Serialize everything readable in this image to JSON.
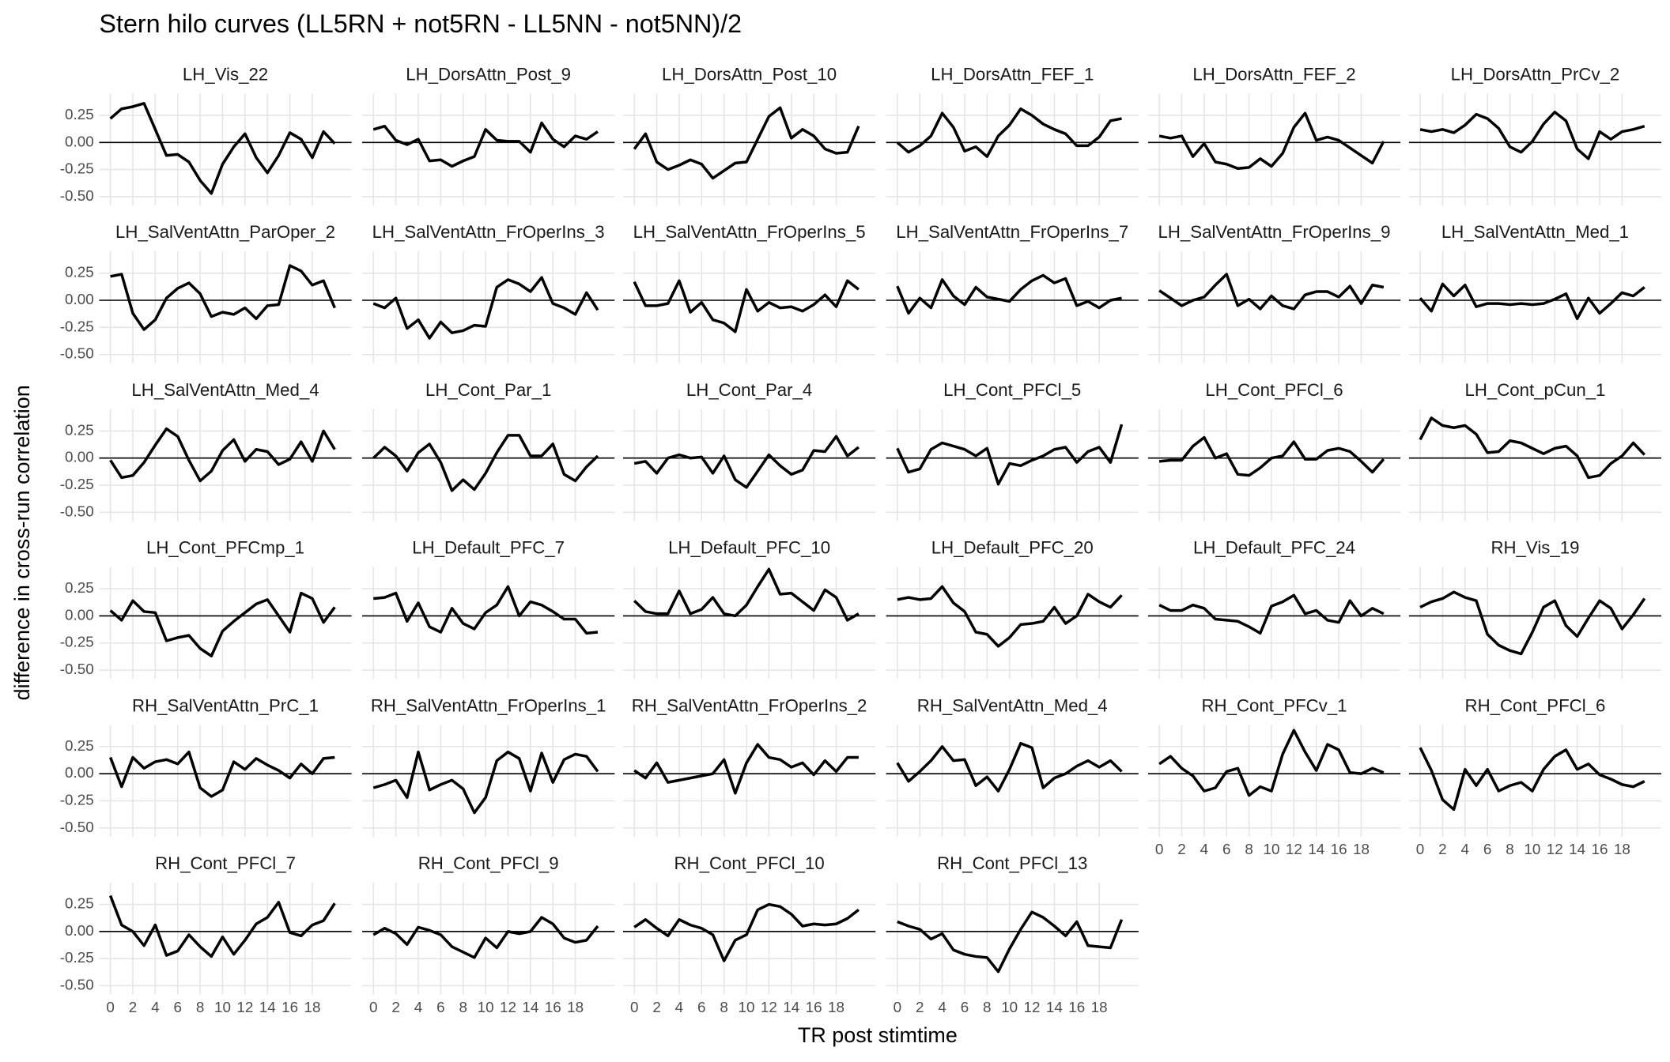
{
  "chart_data": {
    "type": "line",
    "title": "Stern hilo curves (LL5RN + not5RN - LL5NN - not5NN)/2",
    "x_label": "TR post stimtime",
    "y_label": "difference in cross-run correlation",
    "x": [
      0,
      1,
      2,
      3,
      4,
      5,
      6,
      7,
      8,
      9,
      10,
      11,
      12,
      13,
      14,
      15,
      16,
      17,
      18,
      19,
      20
    ],
    "xlim": [
      -1,
      21.5
    ],
    "ylim": [
      -0.58,
      0.45
    ],
    "xticks": [
      0,
      2,
      4,
      6,
      8,
      10,
      12,
      14,
      16,
      18
    ],
    "yticks": [
      {
        "value": -0.5,
        "label": "-0.50"
      },
      {
        "value": -0.25,
        "label": "-0.25"
      },
      {
        "value": 0,
        "label": "0.00"
      },
      {
        "value": 0.25,
        "label": "0.25"
      }
    ],
    "hline": 0,
    "grid": true,
    "color": "#000000",
    "panels": [
      {
        "title": "LH_Vis_22",
        "values": [
          0.22,
          0.31,
          0.33,
          0.36,
          0.12,
          -0.12,
          -0.11,
          -0.18,
          -0.35,
          -0.47,
          -0.2,
          -0.04,
          0.08,
          -0.14,
          -0.28,
          -0.12,
          0.09,
          0.03,
          -0.14,
          0.1,
          -0.01
        ]
      },
      {
        "title": "LH_DorsAttn_Post_9",
        "values": [
          0.12,
          0.15,
          0.02,
          -0.02,
          0.03,
          -0.17,
          -0.16,
          -0.22,
          -0.17,
          -0.13,
          0.12,
          0.02,
          0.01,
          0.01,
          -0.09,
          0.18,
          0.03,
          -0.04,
          0.06,
          0.03,
          0.1
        ]
      },
      {
        "title": "LH_DorsAttn_Post_10",
        "values": [
          -0.06,
          0.08,
          -0.18,
          -0.25,
          -0.21,
          -0.16,
          -0.2,
          -0.33,
          -0.26,
          -0.19,
          -0.18,
          0.03,
          0.24,
          0.32,
          0.04,
          0.12,
          0.06,
          -0.06,
          -0.1,
          -0.09,
          0.15
        ]
      },
      {
        "title": "LH_DorsAttn_FEF_1",
        "values": [
          0.0,
          -0.09,
          -0.03,
          0.06,
          0.27,
          0.14,
          -0.08,
          -0.04,
          -0.13,
          0.06,
          0.16,
          0.31,
          0.25,
          0.17,
          0.12,
          0.08,
          -0.03,
          -0.03,
          0.05,
          0.2,
          0.22
        ]
      },
      {
        "title": "LH_DorsAttn_FEF_2",
        "values": [
          0.06,
          0.04,
          0.06,
          -0.13,
          -0.01,
          -0.18,
          -0.2,
          -0.24,
          -0.23,
          -0.15,
          -0.22,
          -0.1,
          0.14,
          0.27,
          0.02,
          0.05,
          0.02,
          -0.05,
          -0.12,
          -0.19,
          0.01
        ]
      },
      {
        "title": "LH_DorsAttn_PrCv_2",
        "values": [
          0.12,
          0.1,
          0.12,
          0.09,
          0.16,
          0.26,
          0.22,
          0.13,
          -0.04,
          -0.09,
          0.01,
          0.17,
          0.28,
          0.2,
          -0.06,
          -0.15,
          0.1,
          0.03,
          0.1,
          0.12,
          0.15
        ]
      },
      {
        "title": "LH_SalVentAttn_ParOper_2",
        "values": [
          0.22,
          0.24,
          -0.12,
          -0.27,
          -0.18,
          0.02,
          0.11,
          0.16,
          0.06,
          -0.15,
          -0.11,
          -0.13,
          -0.07,
          -0.17,
          -0.05,
          -0.04,
          0.32,
          0.27,
          0.14,
          0.18,
          -0.07
        ]
      },
      {
        "title": "LH_SalVentAttn_FrOperIns_3",
        "values": [
          -0.03,
          -0.07,
          0.02,
          -0.26,
          -0.18,
          -0.35,
          -0.2,
          -0.3,
          -0.28,
          -0.23,
          -0.24,
          0.12,
          0.19,
          0.15,
          0.08,
          0.21,
          -0.03,
          -0.07,
          -0.13,
          0.07,
          -0.09
        ]
      },
      {
        "title": "LH_SalVentAttn_FrOperIns_5",
        "values": [
          0.17,
          -0.05,
          -0.05,
          -0.03,
          0.18,
          -0.11,
          -0.02,
          -0.18,
          -0.21,
          -0.29,
          0.1,
          -0.1,
          -0.02,
          -0.07,
          -0.06,
          -0.1,
          -0.04,
          0.05,
          -0.06,
          0.18,
          0.1
        ]
      },
      {
        "title": "LH_SalVentAttn_FrOperIns_7",
        "values": [
          0.13,
          -0.12,
          0.02,
          -0.07,
          0.19,
          0.04,
          -0.04,
          0.12,
          0.03,
          0.01,
          -0.01,
          0.1,
          0.18,
          0.23,
          0.16,
          0.2,
          -0.05,
          -0.01,
          -0.07,
          0.0,
          0.02
        ]
      },
      {
        "title": "LH_SalVentAttn_FrOperIns_9",
        "values": [
          0.09,
          0.02,
          -0.05,
          0.0,
          0.03,
          0.14,
          0.24,
          -0.05,
          0.01,
          -0.08,
          0.04,
          -0.05,
          -0.08,
          0.05,
          0.08,
          0.08,
          0.03,
          0.13,
          -0.03,
          0.14,
          0.12
        ]
      },
      {
        "title": "LH_SalVentAttn_Med_1",
        "values": [
          0.02,
          -0.1,
          0.15,
          0.04,
          0.14,
          -0.06,
          -0.03,
          -0.03,
          -0.04,
          -0.03,
          -0.04,
          -0.03,
          0.01,
          0.06,
          -0.17,
          0.02,
          -0.12,
          -0.03,
          0.07,
          0.04,
          0.12
        ]
      },
      {
        "title": "LH_SalVentAttn_Med_4",
        "values": [
          -0.02,
          -0.18,
          -0.16,
          -0.04,
          0.12,
          0.27,
          0.2,
          -0.02,
          -0.21,
          -0.12,
          0.07,
          0.17,
          -0.03,
          0.08,
          0.06,
          -0.06,
          -0.01,
          0.15,
          -0.03,
          0.25,
          0.08
        ]
      },
      {
        "title": "LH_Cont_Par_1",
        "values": [
          0.0,
          0.1,
          0.02,
          -0.12,
          0.05,
          0.13,
          -0.04,
          -0.3,
          -0.2,
          -0.29,
          -0.14,
          0.05,
          0.21,
          0.21,
          0.02,
          0.02,
          0.13,
          -0.15,
          -0.21,
          -0.08,
          0.02
        ]
      },
      {
        "title": "LH_Cont_Par_4",
        "values": [
          -0.05,
          -0.03,
          -0.14,
          0.0,
          0.03,
          0.0,
          0.01,
          -0.14,
          0.02,
          -0.2,
          -0.27,
          -0.12,
          0.03,
          -0.07,
          -0.15,
          -0.11,
          0.07,
          0.06,
          0.2,
          0.02,
          0.1
        ]
      },
      {
        "title": "LH_Cont_PFCl_5",
        "values": [
          0.09,
          -0.13,
          -0.1,
          0.08,
          0.14,
          0.11,
          0.08,
          0.02,
          0.09,
          -0.24,
          -0.05,
          -0.07,
          -0.02,
          0.02,
          0.08,
          0.1,
          -0.04,
          0.06,
          0.1,
          -0.04,
          0.31
        ]
      },
      {
        "title": "LH_Cont_PFCl_6",
        "values": [
          -0.03,
          -0.02,
          -0.02,
          0.11,
          0.19,
          0.0,
          0.04,
          -0.15,
          -0.16,
          -0.09,
          0.0,
          0.02,
          0.15,
          -0.01,
          -0.01,
          0.07,
          0.09,
          0.06,
          -0.03,
          -0.13,
          -0.01
        ]
      },
      {
        "title": "LH_Cont_pCun_1",
        "values": [
          0.17,
          0.37,
          0.3,
          0.28,
          0.3,
          0.22,
          0.05,
          0.06,
          0.16,
          0.14,
          0.09,
          0.04,
          0.09,
          0.11,
          0.02,
          -0.18,
          -0.16,
          -0.05,
          0.02,
          0.14,
          0.03
        ]
      },
      {
        "title": "LH_Cont_PFCmp_1",
        "values": [
          0.05,
          -0.04,
          0.14,
          0.04,
          0.03,
          -0.23,
          -0.2,
          -0.18,
          -0.3,
          -0.37,
          -0.14,
          -0.05,
          0.03,
          0.11,
          0.15,
          0.0,
          -0.15,
          0.21,
          0.16,
          -0.06,
          0.08
        ]
      },
      {
        "title": "LH_Default_PFC_7",
        "values": [
          0.16,
          0.17,
          0.21,
          -0.05,
          0.12,
          -0.1,
          -0.15,
          0.07,
          -0.07,
          -0.12,
          0.03,
          0.1,
          0.27,
          0.0,
          0.13,
          0.1,
          0.04,
          -0.03,
          -0.03,
          -0.16,
          -0.15
        ]
      },
      {
        "title": "LH_Default_PFC_10",
        "values": [
          0.14,
          0.04,
          0.02,
          0.02,
          0.23,
          0.02,
          0.06,
          0.17,
          0.02,
          0.0,
          0.1,
          0.27,
          0.43,
          0.2,
          0.21,
          0.13,
          0.05,
          0.24,
          0.17,
          -0.04,
          0.02
        ]
      },
      {
        "title": "LH_Default_PFC_20",
        "values": [
          0.15,
          0.17,
          0.15,
          0.16,
          0.27,
          0.12,
          0.04,
          -0.15,
          -0.17,
          -0.28,
          -0.2,
          -0.08,
          -0.07,
          -0.05,
          0.08,
          -0.07,
          0.0,
          0.2,
          0.13,
          0.08,
          0.19
        ]
      },
      {
        "title": "LH_Default_PFC_24",
        "values": [
          0.1,
          0.05,
          0.05,
          0.1,
          0.07,
          -0.03,
          -0.04,
          -0.05,
          -0.1,
          -0.16,
          0.09,
          0.13,
          0.19,
          0.02,
          0.05,
          -0.04,
          -0.06,
          0.14,
          0.0,
          0.07,
          0.02
        ]
      },
      {
        "title": "RH_Vis_19",
        "values": [
          0.08,
          0.13,
          0.16,
          0.22,
          0.17,
          0.14,
          -0.17,
          -0.27,
          -0.32,
          -0.35,
          -0.15,
          0.08,
          0.14,
          -0.09,
          -0.19,
          -0.02,
          0.14,
          0.07,
          -0.12,
          0.01,
          0.16
        ]
      },
      {
        "title": "RH_SalVentAttn_PrC_1",
        "values": [
          0.15,
          -0.12,
          0.15,
          0.05,
          0.11,
          0.13,
          0.09,
          0.2,
          -0.13,
          -0.21,
          -0.15,
          0.11,
          0.04,
          0.14,
          0.08,
          0.03,
          -0.04,
          0.09,
          0.0,
          0.14,
          0.15
        ]
      },
      {
        "title": "RH_SalVentAttn_FrOperIns_1",
        "values": [
          -0.13,
          -0.1,
          -0.06,
          -0.22,
          0.2,
          -0.15,
          -0.1,
          -0.06,
          -0.14,
          -0.36,
          -0.22,
          0.12,
          0.2,
          0.14,
          -0.16,
          0.19,
          -0.08,
          0.13,
          0.18,
          0.16,
          0.02
        ]
      },
      {
        "title": "RH_SalVentAttn_FrOperIns_2",
        "values": [
          0.03,
          -0.04,
          0.1,
          -0.08,
          -0.06,
          -0.04,
          -0.02,
          0.0,
          0.13,
          -0.18,
          0.1,
          0.27,
          0.15,
          0.13,
          0.06,
          0.1,
          -0.01,
          0.12,
          0.02,
          0.15,
          0.15
        ]
      },
      {
        "title": "RH_SalVentAttn_Med_4",
        "values": [
          0.1,
          -0.07,
          0.02,
          0.12,
          0.25,
          0.12,
          0.13,
          -0.11,
          -0.03,
          -0.16,
          0.04,
          0.28,
          0.24,
          -0.13,
          -0.04,
          0.0,
          0.07,
          0.12,
          0.06,
          0.12,
          0.02
        ]
      },
      {
        "title": "RH_Cont_PFCv_1",
        "values": [
          0.09,
          0.16,
          0.05,
          -0.02,
          -0.16,
          -0.13,
          0.02,
          0.05,
          -0.2,
          -0.12,
          -0.16,
          0.18,
          0.4,
          0.2,
          0.03,
          0.27,
          0.22,
          0.01,
          0.0,
          0.05,
          0.01
        ]
      },
      {
        "title": "RH_Cont_PFCl_6",
        "values": [
          0.24,
          0.03,
          -0.24,
          -0.33,
          0.04,
          -0.11,
          0.04,
          -0.16,
          -0.11,
          -0.08,
          -0.16,
          0.04,
          0.16,
          0.22,
          0.04,
          0.09,
          -0.01,
          -0.05,
          -0.1,
          -0.12,
          -0.07
        ]
      },
      {
        "title": "RH_Cont_PFCl_7",
        "values": [
          0.33,
          0.06,
          0.0,
          -0.13,
          0.06,
          -0.22,
          -0.18,
          -0.03,
          -0.14,
          -0.23,
          -0.05,
          -0.21,
          -0.08,
          0.07,
          0.13,
          0.27,
          -0.01,
          -0.04,
          0.06,
          0.1,
          0.26
        ]
      },
      {
        "title": "RH_Cont_PFCl_9",
        "values": [
          -0.03,
          0.03,
          -0.02,
          -0.12,
          0.04,
          0.01,
          -0.03,
          -0.14,
          -0.19,
          -0.24,
          -0.06,
          -0.15,
          0.0,
          -0.02,
          0.0,
          0.13,
          0.07,
          -0.06,
          -0.1,
          -0.08,
          0.05
        ]
      },
      {
        "title": "RH_Cont_PFCl_10",
        "values": [
          0.04,
          0.11,
          0.03,
          -0.04,
          0.11,
          0.06,
          0.03,
          -0.03,
          -0.27,
          -0.08,
          -0.03,
          0.2,
          0.25,
          0.23,
          0.16,
          0.05,
          0.07,
          0.06,
          0.07,
          0.12,
          0.2
        ]
      },
      {
        "title": "RH_Cont_PFCl_13",
        "values": [
          0.09,
          0.05,
          0.02,
          -0.07,
          -0.02,
          -0.17,
          -0.21,
          -0.23,
          -0.24,
          -0.37,
          -0.16,
          0.02,
          0.18,
          0.13,
          0.05,
          -0.04,
          0.09,
          -0.13,
          -0.14,
          -0.15,
          0.11
        ]
      }
    ]
  }
}
